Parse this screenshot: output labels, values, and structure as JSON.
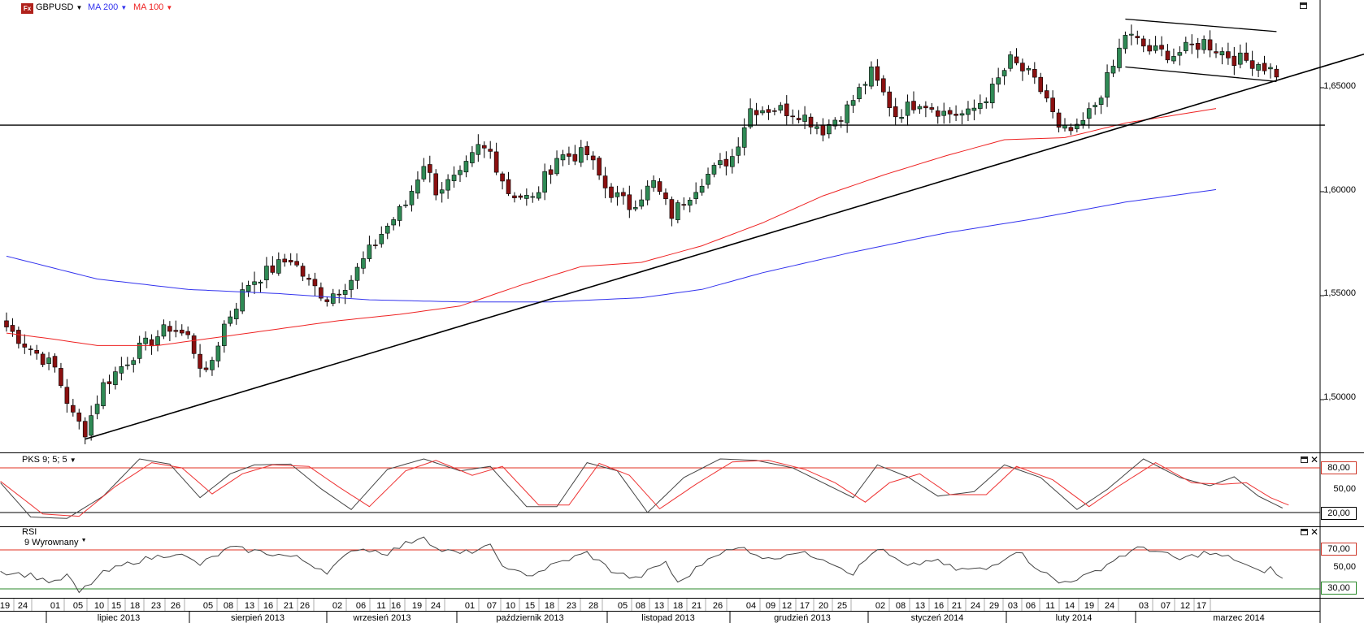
{
  "header": {
    "symbol": "GBPUSD",
    "ma1_label": "MA 200",
    "ma2_label": "MA 100",
    "ma1_color": "#3333ee",
    "ma2_color": "#ee2222",
    "logo_text": "Fx"
  },
  "panels": {
    "oscillator_label": "PKS 9; 5; 5",
    "rsi_label": "RSI",
    "rsi_sub_label": "9 Wyrownany"
  },
  "price_axis": {
    "ticks": [
      {
        "v": 1.65,
        "label": "1,65000"
      },
      {
        "v": 1.6,
        "label": "1,60000"
      },
      {
        "v": 1.55,
        "label": "1,55000"
      },
      {
        "v": 1.5,
        "label": "1,50000"
      }
    ]
  },
  "osc_axis": {
    "ticks": [
      {
        "v": 80,
        "label": "80,00"
      },
      {
        "v": 50,
        "label": "50,00"
      },
      {
        "v": 20,
        "label": "20,00"
      }
    ]
  },
  "rsi_axis": {
    "ticks": [
      {
        "v": 70,
        "label": "70,00"
      },
      {
        "v": 50,
        "label": "50,00"
      },
      {
        "v": 30,
        "label": "30,00"
      }
    ]
  },
  "time_axis": {
    "days": [
      "19",
      "24",
      "01",
      "05",
      "10",
      "15",
      "18",
      "23",
      "26",
      "05",
      "08",
      "13",
      "16",
      "21",
      "26",
      "02",
      "06",
      "11",
      "16",
      "19",
      "24",
      "01",
      "07",
      "10",
      "15",
      "18",
      "23",
      "28",
      "05",
      "08",
      "13",
      "18",
      "21",
      "26",
      "04",
      "09",
      "12",
      "17",
      "20",
      "25",
      "02",
      "08",
      "13",
      "16",
      "21",
      "24",
      "29",
      "03",
      "06",
      "11",
      "14",
      "19",
      "24",
      "03",
      "07",
      "12",
      "17"
    ],
    "months": [
      "lipiec 2013",
      "sierpień 2013",
      "wrzesień 2013",
      "październik 2013",
      "listopad 2013",
      "grudzień 2013",
      "styczeń 2014",
      "luty 2014",
      "marzec 2014"
    ]
  },
  "chart_data": [
    {
      "type": "candlestick",
      "title": "GBPUSD",
      "x_unit": "trading day index (daily candles)",
      "ylim": [
        1.478,
        1.692
      ],
      "anchors_close": [
        [
          0,
          1.535
        ],
        [
          3,
          1.527
        ],
        [
          8,
          1.515
        ],
        [
          11,
          1.492
        ],
        [
          13,
          1.485
        ],
        [
          16,
          1.507
        ],
        [
          21,
          1.522
        ],
        [
          27,
          1.535
        ],
        [
          30,
          1.53
        ],
        [
          33,
          1.511
        ],
        [
          36,
          1.536
        ],
        [
          40,
          1.556
        ],
        [
          44,
          1.563
        ],
        [
          47,
          1.568
        ],
        [
          50,
          1.556
        ],
        [
          53,
          1.549
        ],
        [
          57,
          1.558
        ],
        [
          62,
          1.58
        ],
        [
          66,
          1.594
        ],
        [
          69,
          1.614
        ],
        [
          71,
          1.601
        ],
        [
          75,
          1.607
        ],
        [
          78,
          1.621
        ],
        [
          80,
          1.619
        ],
        [
          83,
          1.6
        ],
        [
          87,
          1.596
        ],
        [
          91,
          1.617
        ],
        [
          96,
          1.618
        ],
        [
          99,
          1.602
        ],
        [
          103,
          1.593
        ],
        [
          107,
          1.604
        ],
        [
          110,
          1.589
        ],
        [
          115,
          1.606
        ],
        [
          120,
          1.617
        ],
        [
          123,
          1.64
        ],
        [
          127,
          1.64
        ],
        [
          131,
          1.638
        ],
        [
          135,
          1.63
        ],
        [
          139,
          1.64
        ],
        [
          143,
          1.657
        ],
        [
          147,
          1.637
        ],
        [
          151,
          1.644
        ],
        [
          155,
          1.638
        ],
        [
          159,
          1.637
        ],
        [
          163,
          1.649
        ],
        [
          166,
          1.663
        ],
        [
          169,
          1.656
        ],
        [
          172,
          1.645
        ],
        [
          174,
          1.629
        ],
        [
          177,
          1.629
        ],
        [
          180,
          1.642
        ],
        [
          183,
          1.66
        ],
        [
          185,
          1.676
        ],
        [
          189,
          1.668
        ],
        [
          193,
          1.666
        ],
        [
          198,
          1.672
        ],
        [
          203,
          1.664
        ],
        [
          207,
          1.662
        ],
        [
          210,
          1.657
        ]
      ],
      "ma200": [
        [
          0,
          1.569
        ],
        [
          15,
          1.558
        ],
        [
          30,
          1.553
        ],
        [
          45,
          1.551
        ],
        [
          60,
          1.548
        ],
        [
          75,
          1.547
        ],
        [
          90,
          1.547
        ],
        [
          105,
          1.549
        ],
        [
          115,
          1.553
        ],
        [
          125,
          1.561
        ],
        [
          140,
          1.571
        ],
        [
          155,
          1.58
        ],
        [
          170,
          1.587
        ],
        [
          185,
          1.595
        ],
        [
          200,
          1.601
        ]
      ],
      "ma100": [
        [
          0,
          1.532
        ],
        [
          8,
          1.529
        ],
        [
          15,
          1.526
        ],
        [
          25,
          1.526
        ],
        [
          35,
          1.53
        ],
        [
          45,
          1.534
        ],
        [
          55,
          1.538
        ],
        [
          65,
          1.541
        ],
        [
          75,
          1.545
        ],
        [
          85,
          1.555
        ],
        [
          95,
          1.564
        ],
        [
          105,
          1.566
        ],
        [
          115,
          1.574
        ],
        [
          125,
          1.585
        ],
        [
          135,
          1.598
        ],
        [
          145,
          1.608
        ],
        [
          155,
          1.617
        ],
        [
          165,
          1.625
        ],
        [
          175,
          1.626
        ],
        [
          185,
          1.633
        ],
        [
          200,
          1.64
        ]
      ],
      "trendlines": [
        {
          "name": "support",
          "from": [
            13,
            1.481
          ],
          "to": [
            230,
            1.671
          ]
        },
        {
          "name": "horizontal",
          "from": [
            -14,
            1.632
          ],
          "to": [
            218,
            1.632
          ]
        },
        {
          "name": "channel-top",
          "from": [
            185,
            1.683
          ],
          "to": [
            210,
            1.677
          ]
        },
        {
          "name": "channel-bottom",
          "from": [
            185,
            1.66
          ],
          "to": [
            210,
            1.653
          ]
        }
      ]
    },
    {
      "type": "line",
      "title": "PKS 9; 5; 5",
      "ylim": [
        0,
        100
      ],
      "levels": [
        80,
        20
      ],
      "series": [
        {
          "color": "#444444",
          "anchors": [
            [
              -1,
              60
            ],
            [
              4,
              14
            ],
            [
              10,
              12
            ],
            [
              16,
              42
            ],
            [
              22,
              92
            ],
            [
              27,
              85
            ],
            [
              32,
              40
            ],
            [
              37,
              72
            ],
            [
              41,
              84
            ],
            [
              47,
              85
            ],
            [
              52,
              52
            ],
            [
              57,
              24
            ],
            [
              63,
              78
            ],
            [
              69,
              92
            ],
            [
              75,
              76
            ],
            [
              80,
              82
            ],
            [
              86,
              28
            ],
            [
              91,
              28
            ],
            [
              96,
              87
            ],
            [
              101,
              76
            ],
            [
              106,
              20
            ],
            [
              112,
              67
            ],
            [
              118,
              92
            ],
            [
              124,
              90
            ],
            [
              130,
              80
            ],
            [
              135,
              60
            ],
            [
              140,
              40
            ],
            [
              144,
              84
            ],
            [
              149,
              68
            ],
            [
              154,
              42
            ],
            [
              160,
              48
            ],
            [
              165,
              84
            ],
            [
              171,
              67
            ],
            [
              177,
              24
            ],
            [
              182,
              51
            ],
            [
              188,
              92
            ],
            [
              194,
              67
            ],
            [
              199,
              56
            ],
            [
              203,
              68
            ],
            [
              207,
              42
            ],
            [
              211,
              26
            ]
          ]
        },
        {
          "color": "#ee3333",
          "anchors": [
            [
              -1,
              62
            ],
            [
              6,
              18
            ],
            [
              12,
              15
            ],
            [
              18,
              55
            ],
            [
              24,
              87
            ],
            [
              29,
              80
            ],
            [
              34,
              45
            ],
            [
              39,
              72
            ],
            [
              44,
              84
            ],
            [
              50,
              82
            ],
            [
              55,
              54
            ],
            [
              60,
              28
            ],
            [
              66,
              76
            ],
            [
              71,
              90
            ],
            [
              77,
              70
            ],
            [
              82,
              82
            ],
            [
              88,
              30
            ],
            [
              93,
              30
            ],
            [
              98,
              86
            ],
            [
              103,
              70
            ],
            [
              108,
              25
            ],
            [
              114,
              58
            ],
            [
              120,
              88
            ],
            [
              126,
              90
            ],
            [
              132,
              78
            ],
            [
              137,
              60
            ],
            [
              142,
              34
            ],
            [
              146,
              60
            ],
            [
              151,
              72
            ],
            [
              156,
              44
            ],
            [
              162,
              44
            ],
            [
              167,
              82
            ],
            [
              173,
              64
            ],
            [
              179,
              28
            ],
            [
              184,
              56
            ],
            [
              190,
              87
            ],
            [
              196,
              60
            ],
            [
              201,
              58
            ],
            [
              205,
              60
            ],
            [
              209,
              40
            ],
            [
              212,
              30
            ]
          ]
        }
      ]
    },
    {
      "type": "line",
      "title": "RSI",
      "ylim": [
        20,
        90
      ],
      "levels": [
        70,
        30
      ],
      "series": [
        {
          "color": "#444444",
          "anchors": [
            [
              -1,
              48
            ],
            [
              4,
              44
            ],
            [
              8,
              36
            ],
            [
              10,
              44
            ],
            [
              12,
              26
            ],
            [
              16,
              46
            ],
            [
              21,
              58
            ],
            [
              28,
              67
            ],
            [
              32,
              55
            ],
            [
              37,
              72
            ],
            [
              42,
              68
            ],
            [
              48,
              62
            ],
            [
              53,
              48
            ],
            [
              58,
              72
            ],
            [
              63,
              67
            ],
            [
              69,
              85
            ],
            [
              71,
              71
            ],
            [
              75,
              66
            ],
            [
              80,
              73
            ],
            [
              83,
              48
            ],
            [
              87,
              45
            ],
            [
              91,
              56
            ],
            [
              96,
              67
            ],
            [
              100,
              49
            ],
            [
              104,
              40
            ],
            [
              109,
              58
            ],
            [
              111,
              35
            ],
            [
              117,
              66
            ],
            [
              122,
              72
            ],
            [
              126,
              60
            ],
            [
              130,
              68
            ],
            [
              135,
              62
            ],
            [
              140,
              46
            ],
            [
              144,
              72
            ],
            [
              149,
              52
            ],
            [
              153,
              60
            ],
            [
              157,
              50
            ],
            [
              162,
              50
            ],
            [
              167,
              70
            ],
            [
              170,
              54
            ],
            [
              174,
              36
            ],
            [
              179,
              44
            ],
            [
              184,
              63
            ],
            [
              188,
              73
            ],
            [
              194,
              60
            ],
            [
              198,
              67
            ],
            [
              203,
              61
            ],
            [
              207,
              47
            ],
            [
              209,
              51
            ],
            [
              211,
              40
            ]
          ]
        }
      ]
    }
  ]
}
